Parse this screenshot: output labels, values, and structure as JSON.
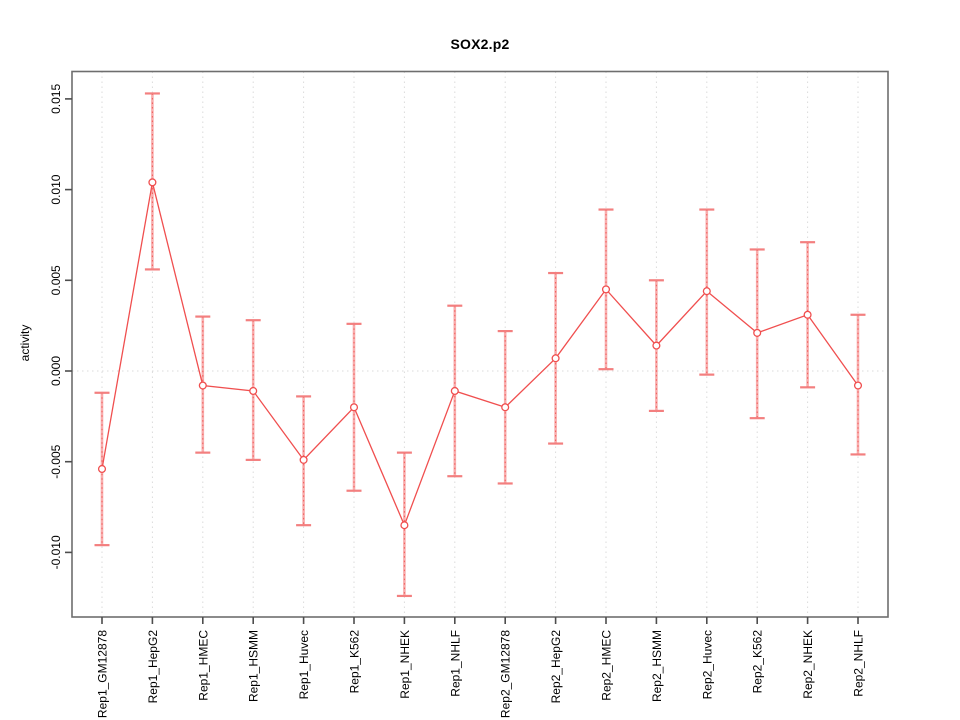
{
  "chart_data": {
    "type": "line",
    "title": "SOX2.p2",
    "xlabel": "",
    "ylabel": "activity",
    "legend_position": "none",
    "marker": "open-circle",
    "grid": {
      "vertical_gridlines": "dotted",
      "horizontal_zero_line": "dotted"
    },
    "categories": [
      "Rep1_GM12878",
      "Rep1_HepG2",
      "Rep1_HMEC",
      "Rep1_HSMM",
      "Rep1_Huvec",
      "Rep1_K562",
      "Rep1_NHEK",
      "Rep1_NHLF",
      "Rep2_GM12878",
      "Rep2_HepG2",
      "Rep2_HMEC",
      "Rep2_HSMM",
      "Rep2_Huvec",
      "Rep2_K562",
      "Rep2_NHEK",
      "Rep2_NHLF"
    ],
    "series": [
      {
        "name": "activity",
        "values": [
          -0.0054,
          0.0104,
          -0.0008,
          -0.0011,
          -0.0049,
          -0.002,
          -0.0085,
          -0.0011,
          -0.002,
          0.0007,
          0.0045,
          0.0014,
          0.0044,
          0.0021,
          0.0031,
          -0.0008
        ],
        "error_low": [
          -0.0096,
          0.0056,
          -0.0045,
          -0.0049,
          -0.0085,
          -0.0066,
          -0.0124,
          -0.0058,
          -0.0062,
          -0.004,
          0.0001,
          -0.0022,
          -0.0002,
          -0.0026,
          -0.0009,
          -0.0046
        ],
        "error_high": [
          -0.0012,
          0.0153,
          0.003,
          0.0028,
          -0.0014,
          0.0026,
          -0.0045,
          0.0036,
          0.0022,
          0.0054,
          0.0089,
          0.005,
          0.0089,
          0.0067,
          0.0071,
          0.0031
        ]
      }
    ],
    "yticks": {
      "values": [
        0.015,
        0.01,
        0.005,
        0.0,
        -0.005,
        -0.01
      ],
      "labels": [
        "0.015",
        "0.010",
        "0.005",
        "0.000",
        "-0.005",
        "-0.010"
      ]
    },
    "ylim": [
      -0.0134,
      0.0165
    ],
    "colors": {
      "series": "#F04F4F",
      "error_bar_fill": "#F8A0A0",
      "error_bar_cap": "#F37F7F",
      "error_bar_dotted": "#EF5350",
      "gridline": "#DBDBDB",
      "axis_box": "#6E6E6E",
      "tick": "#4D4D4D",
      "text": "#000000",
      "background": "#FFFFFF"
    }
  }
}
